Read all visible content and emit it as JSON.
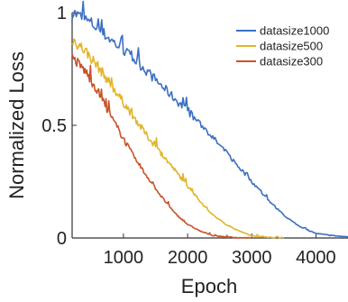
{
  "chart_data": {
    "type": "line",
    "title": "",
    "xlabel": "Epoch",
    "ylabel": "Normalized Loss",
    "xlim": [
      200,
      4500
    ],
    "ylim": [
      0,
      1
    ],
    "xticks": [
      1000,
      2000,
      3000,
      4000
    ],
    "xtick_labels": [
      "1000",
      "2000",
      "3000",
      "4000"
    ],
    "yticks": [
      0,
      0.5,
      1
    ],
    "ytick_labels": [
      "0",
      "0.5",
      "1"
    ],
    "grid": false,
    "legend_position": "top-right",
    "series": [
      {
        "name": "datasize1000",
        "color": "#3a6fc4",
        "x": [
          200,
          500,
          750,
          1000,
          1250,
          1500,
          1750,
          2000,
          2250,
          2500,
          2750,
          3000,
          3250,
          3500,
          3750,
          4000,
          4250,
          4500
        ],
        "y": [
          1.0,
          0.95,
          0.89,
          0.83,
          0.77,
          0.7,
          0.63,
          0.56,
          0.49,
          0.41,
          0.33,
          0.25,
          0.17,
          0.1,
          0.05,
          0.02,
          0.01,
          0.005
        ]
      },
      {
        "name": "datasize500",
        "color": "#e3b52b",
        "x": [
          200,
          400,
          600,
          800,
          1000,
          1200,
          1400,
          1600,
          1800,
          2000,
          2200,
          2400,
          2600,
          2800,
          3000,
          3200,
          3500
        ],
        "y": [
          0.88,
          0.83,
          0.76,
          0.68,
          0.6,
          0.52,
          0.44,
          0.37,
          0.3,
          0.23,
          0.16,
          0.1,
          0.06,
          0.03,
          0.01,
          0.005,
          0.0
        ]
      },
      {
        "name": "datasize300",
        "color": "#c8532a",
        "x": [
          200,
          400,
          600,
          800,
          1000,
          1200,
          1400,
          1600,
          1800,
          2000,
          2200,
          2400,
          2600,
          2800,
          3000
        ],
        "y": [
          0.8,
          0.74,
          0.65,
          0.54,
          0.44,
          0.34,
          0.26,
          0.18,
          0.11,
          0.06,
          0.03,
          0.01,
          0.005,
          0.0,
          0.0
        ]
      }
    ]
  }
}
